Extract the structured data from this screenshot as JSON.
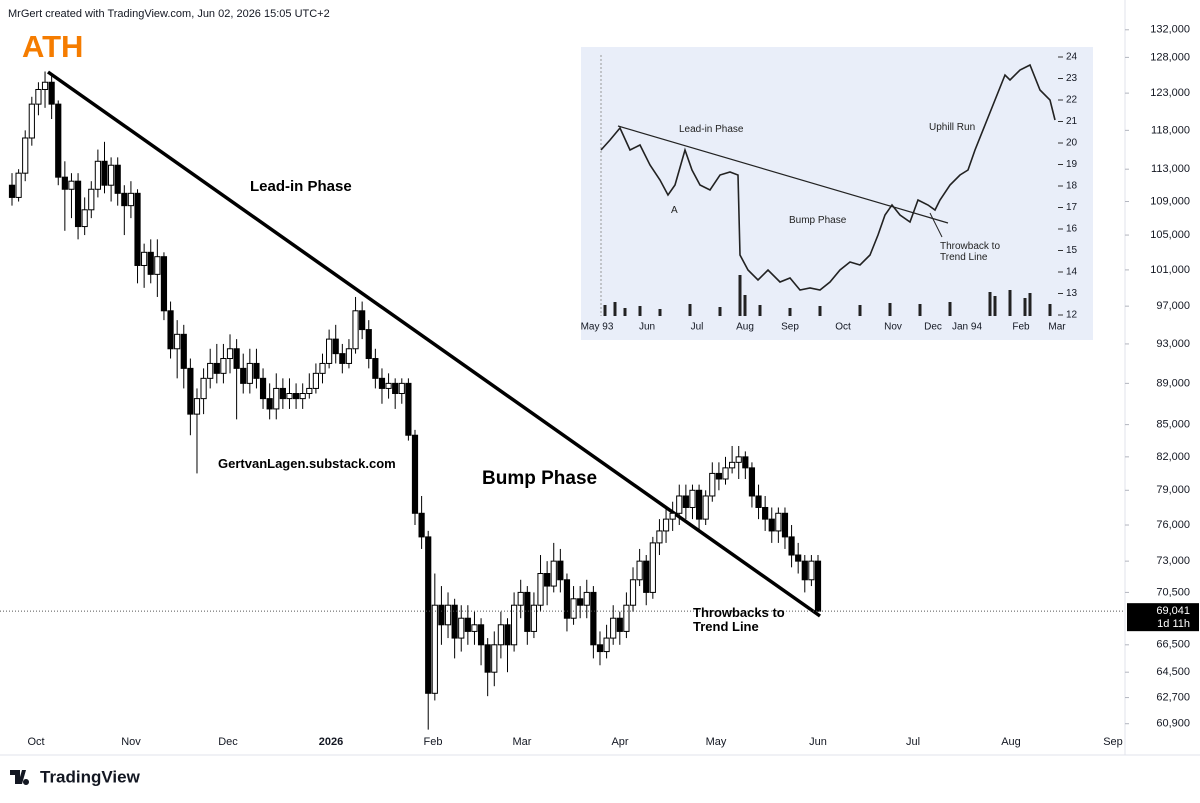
{
  "header": "MrGert created with TradingView.com, Jun 02, 2026 15:05 UTC+2",
  "footer": "TradingView",
  "chart_data": {
    "type": "candlestick",
    "annotations": {
      "ath": "ATH",
      "lead_in": "Lead-in Phase",
      "watermark": "GertvanLagen.substack.com",
      "bump": "Bump Phase",
      "throwback": "Throwbacks to Trend Line"
    },
    "x_labels": [
      "Oct",
      "Nov",
      "Dec",
      "2026",
      "Feb",
      "Mar",
      "Apr",
      "May",
      "Jun",
      "Jul",
      "Aug",
      "Sep"
    ],
    "log_scale": true,
    "ylim": [
      60340,
      133150
    ],
    "yticks": [
      {
        "value": 132000,
        "label": "132,000"
      },
      {
        "value": 128000,
        "label": "128,000"
      },
      {
        "value": 123000,
        "label": "123,000"
      },
      {
        "value": 118000,
        "label": "118,000"
      },
      {
        "value": 113000,
        "label": "113,000"
      },
      {
        "value": 109000,
        "label": "109,000"
      },
      {
        "value": 105000,
        "label": "105,000"
      },
      {
        "value": 101000,
        "label": "101,000"
      },
      {
        "value": 97000,
        "label": "97,000"
      },
      {
        "value": 93000,
        "label": "93,000"
      },
      {
        "value": 89000,
        "label": "89,000"
      },
      {
        "value": 85000,
        "label": "85,000"
      },
      {
        "value": 82000,
        "label": "82,000"
      },
      {
        "value": 79000,
        "label": "79,000"
      },
      {
        "value": 76000,
        "label": "76,000"
      },
      {
        "value": 73000,
        "label": "73,000"
      },
      {
        "value": 70500,
        "label": "70,500"
      },
      {
        "value": 66500,
        "label": "66,500"
      },
      {
        "value": 64500,
        "label": "64,500"
      },
      {
        "value": 62700,
        "label": "62,700"
      },
      {
        "value": 60900,
        "label": "60,900"
      }
    ],
    "price_label": "69,041",
    "countdown": "1d 11h",
    "up_color": "#ffffff",
    "down_color": "#000000",
    "candles": [
      [
        111000,
        112500,
        108500,
        109500
      ],
      [
        109500,
        113000,
        109000,
        112500
      ],
      [
        112500,
        118000,
        111500,
        117000
      ],
      [
        117000,
        122500,
        116000,
        121500
      ],
      [
        121500,
        124500,
        120000,
        123500
      ],
      [
        123500,
        126000,
        121000,
        124500
      ],
      [
        124500,
        125500,
        119500,
        121500
      ],
      [
        121500,
        122000,
        111000,
        112000
      ],
      [
        112000,
        114000,
        105500,
        110500
      ],
      [
        110500,
        112500,
        107000,
        111500
      ],
      [
        111500,
        112500,
        104500,
        106000
      ],
      [
        106000,
        109500,
        105000,
        108000
      ],
      [
        108000,
        111500,
        107000,
        110500
      ],
      [
        110500,
        115500,
        109500,
        114000
      ],
      [
        114000,
        116500,
        110000,
        111000
      ],
      [
        111000,
        114500,
        109000,
        113500
      ],
      [
        113500,
        114500,
        108500,
        110000
      ],
      [
        110000,
        111000,
        105000,
        108500
      ],
      [
        108500,
        111500,
        107000,
        110000
      ],
      [
        110000,
        110500,
        99500,
        101500
      ],
      [
        101500,
        104000,
        99000,
        103000
      ],
      [
        103000,
        104500,
        99500,
        100500
      ],
      [
        100500,
        104500,
        98000,
        102500
      ],
      [
        102500,
        103000,
        95500,
        96500
      ],
      [
        96500,
        97500,
        91500,
        92500
      ],
      [
        92500,
        95500,
        89500,
        94000
      ],
      [
        94000,
        95000,
        88500,
        90500
      ],
      [
        90500,
        91500,
        84000,
        86000
      ],
      [
        86000,
        88500,
        80500,
        87500
      ],
      [
        87500,
        90500,
        86000,
        89500
      ],
      [
        89500,
        92500,
        88500,
        91000
      ],
      [
        91000,
        93000,
        89000,
        90000
      ],
      [
        90000,
        93000,
        89000,
        91500
      ],
      [
        91500,
        94000,
        90000,
        92500
      ],
      [
        92500,
        93500,
        85500,
        90500
      ],
      [
        90500,
        92000,
        88000,
        89000
      ],
      [
        89000,
        92500,
        88000,
        91000
      ],
      [
        91000,
        92500,
        88500,
        89500
      ],
      [
        89500,
        90500,
        86500,
        87500
      ],
      [
        87500,
        89000,
        85500,
        86500
      ],
      [
        86500,
        90000,
        85500,
        88500
      ],
      [
        88500,
        89500,
        86500,
        87500
      ],
      [
        87500,
        89500,
        86500,
        88000
      ],
      [
        88000,
        89000,
        86500,
        87500
      ],
      [
        87500,
        89000,
        86500,
        88000
      ],
      [
        88000,
        90000,
        87500,
        88500
      ],
      [
        88500,
        91000,
        88000,
        90000
      ],
      [
        90000,
        92000,
        89000,
        91000
      ],
      [
        91000,
        94500,
        90500,
        93500
      ],
      [
        93500,
        95000,
        91000,
        92000
      ],
      [
        92000,
        93000,
        90000,
        91000
      ],
      [
        91000,
        93500,
        90500,
        92500
      ],
      [
        92500,
        98000,
        92000,
        96500
      ],
      [
        96500,
        97500,
        93500,
        94500
      ],
      [
        94500,
        95500,
        90500,
        91500
      ],
      [
        91500,
        92500,
        88500,
        89500
      ],
      [
        89500,
        90500,
        87000,
        88500
      ],
      [
        88500,
        90000,
        87500,
        89000
      ],
      [
        89000,
        89500,
        86500,
        88000
      ],
      [
        88000,
        89500,
        87000,
        89000
      ],
      [
        89000,
        89500,
        83500,
        84000
      ],
      [
        84000,
        84500,
        76000,
        77000
      ],
      [
        77000,
        78500,
        74000,
        75000
      ],
      [
        75000,
        75500,
        60500,
        63000
      ],
      [
        63000,
        72000,
        62500,
        69500
      ],
      [
        69500,
        71000,
        66500,
        68000
      ],
      [
        68000,
        70500,
        67000,
        69500
      ],
      [
        69500,
        70000,
        65500,
        67000
      ],
      [
        67000,
        69500,
        66000,
        68500
      ],
      [
        68500,
        69500,
        66500,
        67500
      ],
      [
        67500,
        69000,
        66500,
        68000
      ],
      [
        68000,
        68500,
        65000,
        66500
      ],
      [
        66500,
        67000,
        62800,
        64500
      ],
      [
        64500,
        67500,
        63500,
        66500
      ],
      [
        66500,
        69000,
        65500,
        68000
      ],
      [
        68000,
        68500,
        64500,
        66500
      ],
      [
        66500,
        70500,
        66000,
        69500
      ],
      [
        69500,
        71500,
        68500,
        70500
      ],
      [
        70500,
        71000,
        66500,
        67500
      ],
      [
        67500,
        70500,
        67000,
        69500
      ],
      [
        69500,
        73500,
        69000,
        72000
      ],
      [
        72000,
        73000,
        69500,
        71000
      ],
      [
        71000,
        74500,
        70500,
        73000
      ],
      [
        73000,
        74000,
        70500,
        71500
      ],
      [
        71500,
        72000,
        67500,
        68500
      ],
      [
        68500,
        71000,
        68000,
        70000
      ],
      [
        70000,
        71000,
        68500,
        69500
      ],
      [
        69500,
        71500,
        68500,
        70500
      ],
      [
        70500,
        71000,
        65500,
        66500
      ],
      [
        66500,
        67500,
        65000,
        66000
      ],
      [
        66000,
        68000,
        65500,
        67000
      ],
      [
        67000,
        69500,
        66500,
        68500
      ],
      [
        68500,
        69000,
        66500,
        67500
      ],
      [
        67500,
        70500,
        67000,
        69500
      ],
      [
        69500,
        72500,
        69000,
        71500
      ],
      [
        71500,
        74000,
        71000,
        73000
      ],
      [
        73000,
        73500,
        69500,
        70500
      ],
      [
        70500,
        75000,
        70000,
        74500
      ],
      [
        74500,
        76500,
        73500,
        75500
      ],
      [
        75500,
        77500,
        74500,
        76500
      ],
      [
        76500,
        78000,
        75500,
        77000
      ],
      [
        77000,
        79500,
        76000,
        78500
      ],
      [
        78500,
        79500,
        76500,
        77500
      ],
      [
        77500,
        79500,
        76500,
        79000
      ],
      [
        79000,
        79500,
        75500,
        76500
      ],
      [
        76500,
        79000,
        76000,
        78500
      ],
      [
        78500,
        81500,
        78000,
        80500
      ],
      [
        80500,
        81500,
        79000,
        80000
      ],
      [
        80000,
        82000,
        79500,
        81000
      ],
      [
        81000,
        83000,
        80500,
        81500
      ],
      [
        81500,
        83000,
        80000,
        82000
      ],
      [
        82000,
        82500,
        80000,
        81000
      ],
      [
        81000,
        81500,
        77500,
        78500
      ],
      [
        78500,
        79500,
        76500,
        77500
      ],
      [
        77500,
        78500,
        75500,
        76500
      ],
      [
        76500,
        77500,
        74500,
        75500
      ],
      [
        75500,
        77500,
        74500,
        77000
      ],
      [
        77000,
        77500,
        74000,
        75000
      ],
      [
        75000,
        76000,
        72500,
        73500
      ],
      [
        73500,
        74500,
        72000,
        73000
      ],
      [
        73000,
        73500,
        70500,
        71500
      ],
      [
        71500,
        73500,
        71000,
        73000
      ],
      [
        73000,
        73500,
        69000,
        69041
      ]
    ]
  },
  "inset": {
    "lead_in": "Lead-in Phase",
    "point": "A",
    "bump": "Bump Phase",
    "throwback": "Throwback to Trend Line",
    "uphill": "Uphill Run",
    "months": [
      "May 93",
      "Jun",
      "Jul",
      "Aug",
      "Sep",
      "Oct",
      "Nov",
      "Dec",
      "Jan 94",
      "Feb",
      "Mar"
    ],
    "yticks": [
      24,
      23,
      22,
      21,
      20,
      19,
      18,
      17,
      16,
      15,
      14,
      13,
      12
    ]
  }
}
